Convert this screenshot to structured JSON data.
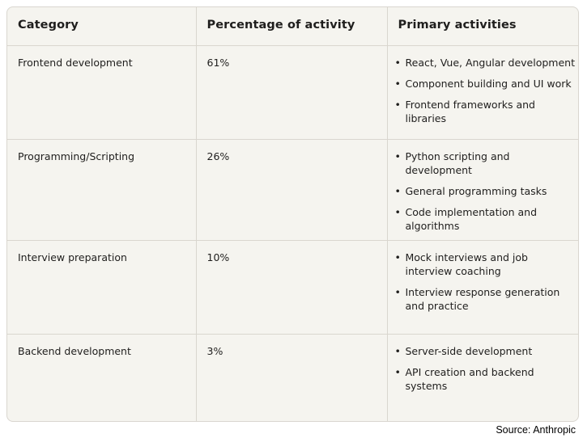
{
  "table": {
    "headers": [
      "Category",
      "Percentage of activity",
      "Primary activities"
    ],
    "rows": [
      {
        "category": "Frontend development",
        "percentage": "61%",
        "activities": [
          "React, Vue, Angular development",
          "Component building and UI work",
          "Frontend frameworks and libraries"
        ]
      },
      {
        "category": "Programming/Scripting",
        "percentage": "26%",
        "activities": [
          "Python scripting and development",
          "General programming tasks",
          "Code implementation and algorithms"
        ]
      },
      {
        "category": "Interview preparation",
        "percentage": "10%",
        "activities": [
          "Mock interviews and job interview coaching",
          "Interview response generation and practice"
        ]
      },
      {
        "category": "Backend development",
        "percentage": "3%",
        "activities": [
          "Server-side development",
          "API creation and backend systems"
        ]
      }
    ]
  },
  "source": "Source: Anthropic",
  "colors": {
    "background": "#f5f4ef",
    "border": "#d9d6cf",
    "text": "#1f1e1d"
  }
}
